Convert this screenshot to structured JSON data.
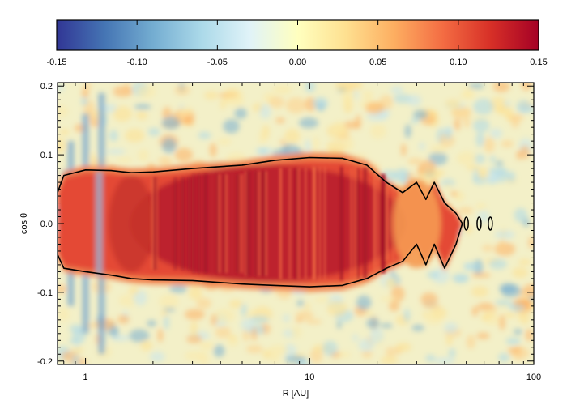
{
  "chart_data": {
    "type": "heatmap",
    "title": "",
    "xlabel": "R [AU]",
    "ylabel": "cos θ",
    "xscale": "log",
    "xlim": [
      0.75,
      100
    ],
    "ylim": [
      -0.205,
      0.205
    ],
    "xticks": [
      {
        "value": 1,
        "label": "1"
      },
      {
        "value": 10,
        "label": "10"
      },
      {
        "value": 100,
        "label": "100"
      }
    ],
    "yticks": [
      {
        "value": 0.2,
        "label": "0.2"
      },
      {
        "value": 0.1,
        "label": "0.1"
      },
      {
        "value": 0.0,
        "label": "0.0"
      },
      {
        "value": -0.1,
        "label": "-0.1"
      },
      {
        "value": -0.2,
        "label": "-0.2"
      }
    ],
    "colorbar": {
      "range": [
        -0.15,
        0.15
      ],
      "ticks": [
        {
          "value": -0.15,
          "label": "-0.15"
        },
        {
          "value": -0.1,
          "label": "-0.10"
        },
        {
          "value": -0.05,
          "label": "-0.05"
        },
        {
          "value": 0.0,
          "label": "0.00"
        },
        {
          "value": 0.05,
          "label": "0.05"
        },
        {
          "value": 0.1,
          "label": "0.10"
        },
        {
          "value": 0.15,
          "label": "0.15"
        }
      ],
      "colormap": [
        "#313695",
        "#4575b4",
        "#74add1",
        "#abd9e9",
        "#e0f3f8",
        "#ffffbf",
        "#fee090",
        "#fdae61",
        "#f46d43",
        "#d73027",
        "#a50026"
      ]
    },
    "contour": {
      "upper": [
        [
          0.75,
          0.045
        ],
        [
          0.8,
          0.07
        ],
        [
          1.0,
          0.078
        ],
        [
          1.3,
          0.077
        ],
        [
          1.6,
          0.074
        ],
        [
          2.0,
          0.075
        ],
        [
          3.0,
          0.08
        ],
        [
          5.0,
          0.085
        ],
        [
          7.0,
          0.092
        ],
        [
          10.0,
          0.096
        ],
        [
          14.0,
          0.095
        ],
        [
          18.0,
          0.085
        ],
        [
          22.0,
          0.06
        ],
        [
          26.0,
          0.045
        ],
        [
          30.0,
          0.06
        ],
        [
          33.0,
          0.035
        ],
        [
          36.0,
          0.06
        ],
        [
          40.0,
          0.03
        ],
        [
          45.0,
          0.015
        ],
        [
          48.0,
          0.0
        ]
      ],
      "lower": [
        [
          0.75,
          -0.045
        ],
        [
          0.8,
          -0.065
        ],
        [
          1.0,
          -0.07
        ],
        [
          1.3,
          -0.075
        ],
        [
          1.6,
          -0.08
        ],
        [
          2.0,
          -0.082
        ],
        [
          3.0,
          -0.083
        ],
        [
          5.0,
          -0.088
        ],
        [
          7.0,
          -0.09
        ],
        [
          10.0,
          -0.092
        ],
        [
          14.0,
          -0.09
        ],
        [
          18.0,
          -0.08
        ],
        [
          22.0,
          -0.065
        ],
        [
          26.0,
          -0.055
        ],
        [
          30.0,
          -0.03
        ],
        [
          33.0,
          -0.06
        ],
        [
          36.0,
          -0.03
        ],
        [
          40.0,
          -0.065
        ],
        [
          45.0,
          -0.03
        ],
        [
          48.0,
          0.0
        ]
      ],
      "islands": [
        [
          50,
          0.0
        ],
        [
          57,
          0.0
        ],
        [
          64,
          0.0
        ]
      ]
    }
  }
}
